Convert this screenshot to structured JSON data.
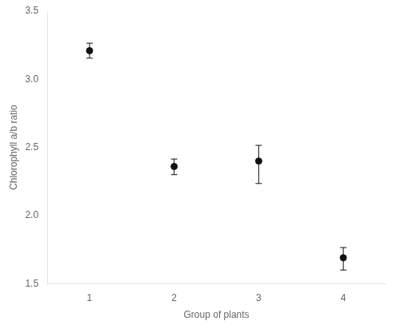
{
  "chart_data": {
    "type": "scatter",
    "xlabel": "Group of plants",
    "ylabel": "Chlorophyll a/b ratio",
    "x": [
      1,
      2,
      3,
      4
    ],
    "values": [
      3.21,
      2.36,
      2.4,
      1.69
    ],
    "error_upper": [
      0.055,
      0.055,
      0.115,
      0.075
    ],
    "error_lower": [
      0.055,
      0.06,
      0.165,
      0.09
    ],
    "color": "#111111",
    "marker": "circle",
    "xlim": [
      0.5,
      4.5
    ],
    "xticks": [
      1,
      2,
      3,
      4
    ],
    "ylim": [
      1.5,
      3.5
    ],
    "yticks": [
      1.5,
      {
        "value": 2,
        "label": "2.0"
      },
      2.5,
      {
        "value": 3,
        "label": "3.0"
      },
      3.5
    ],
    "grid": false
  }
}
